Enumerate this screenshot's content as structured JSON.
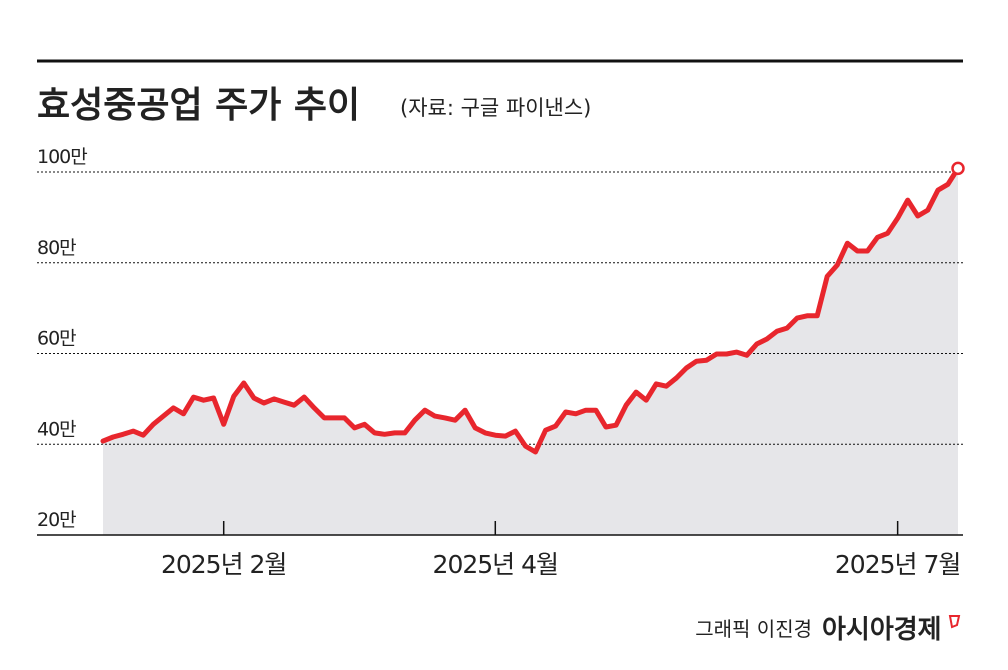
{
  "chart_data": {
    "type": "line",
    "title": "효성중공업 주가 추이",
    "subtitle": "(자료: 구글 파이낸스)",
    "credit": "그래픽 이진경",
    "brand": "아시아경제",
    "color": "#e8262d",
    "area_color": "#e6e6e9",
    "grid": true,
    "ylim": [
      20,
      100
    ],
    "yticks": [
      {
        "value": 20,
        "label": "20만"
      },
      {
        "value": 40,
        "label": "40만"
      },
      {
        "value": 60,
        "label": "60만"
      },
      {
        "value": 80,
        "label": "80만"
      },
      {
        "value": 100,
        "label": "100만"
      }
    ],
    "categories": [
      null,
      null,
      null,
      null,
      null,
      null,
      null,
      null,
      null,
      null,
      null,
      null,
      "2025년 2월",
      null,
      null,
      null,
      null,
      null,
      null,
      null,
      null,
      null,
      null,
      null,
      null,
      null,
      null,
      null,
      null,
      null,
      null,
      null,
      null,
      null,
      null,
      null,
      null,
      null,
      null,
      "2025년 4월",
      null,
      null,
      null,
      null,
      null,
      null,
      null,
      null,
      null,
      null,
      null,
      null,
      null,
      null,
      null,
      null,
      null,
      null,
      null,
      null,
      null,
      null,
      null,
      null,
      null,
      null,
      null,
      null,
      null,
      null,
      null,
      null,
      null,
      null,
      null,
      null,
      null,
      null,
      null,
      "2025년 7월",
      null,
      null,
      null,
      null,
      null,
      null
    ],
    "values": [
      40.7,
      41.6,
      42.2,
      42.9,
      42,
      44.4,
      46.2,
      48,
      46.7,
      50.4,
      49.7,
      50.2,
      44.4,
      50.6,
      53.5,
      50.2,
      49.1,
      50,
      49.3,
      48.6,
      50.4,
      48,
      45.8,
      45.8,
      45.8,
      43.6,
      44.4,
      42.5,
      42.2,
      42.5,
      42.5,
      45.3,
      47.5,
      46.2,
      45.8,
      45.3,
      47.5,
      43.6,
      42.5,
      42,
      41.8,
      42.9,
      39.6,
      38.3,
      43.1,
      44,
      47.1,
      46.7,
      47.5,
      47.5,
      43.8,
      44.2,
      48.6,
      51.5,
      49.7,
      53.3,
      52.8,
      54.6,
      56.8,
      58.3,
      58.5,
      59.9,
      59.9,
      60.3,
      59.6,
      62.1,
      63.2,
      64.9,
      65.6,
      67.8,
      68.3,
      68.3,
      77,
      79.5,
      84.3,
      82.6,
      82.6,
      85.6,
      86.5,
      89.8,
      93.8,
      90.3,
      91.6,
      96,
      97.3,
      100.8
    ]
  }
}
